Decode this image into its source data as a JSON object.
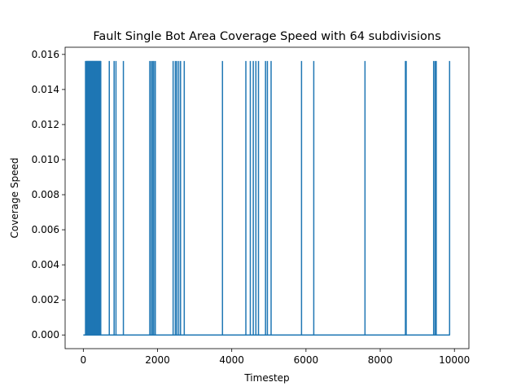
{
  "chart_data": {
    "type": "line",
    "title": "Fault Single Bot Area Coverage Speed with 64 subdivisions",
    "xlabel": "Timestep",
    "ylabel": "Coverage Speed",
    "xlim": [
      -490,
      10390
    ],
    "ylim": [
      -0.00078,
      0.01641
    ],
    "xticks": [
      0,
      2000,
      4000,
      6000,
      8000,
      10000
    ],
    "xtick_labels": [
      "0",
      "2000",
      "4000",
      "6000",
      "8000",
      "10000"
    ],
    "yticks": [
      0.0,
      0.002,
      0.004,
      0.006,
      0.008,
      0.01,
      0.012,
      0.014,
      0.016
    ],
    "ytick_labels": [
      "0.000",
      "0.002",
      "0.004",
      "0.006",
      "0.008",
      "0.010",
      "0.012",
      "0.014",
      "0.016"
    ],
    "grid": false,
    "legend": "none",
    "series": [
      {
        "color": "#1f77b4",
        "x_range": [
          0,
          9880
        ],
        "baseline": 0.0,
        "spike_value": 0.015625,
        "spike_timesteps": [
          60,
          75,
          90,
          100,
          110,
          120,
          130,
          140,
          150,
          160,
          170,
          180,
          190,
          200,
          210,
          220,
          230,
          240,
          250,
          260,
          270,
          280,
          290,
          300,
          310,
          320,
          330,
          340,
          350,
          360,
          370,
          380,
          390,
          400,
          410,
          420,
          430,
          440,
          450,
          460,
          470,
          700,
          830,
          880,
          1080,
          1790,
          1830,
          1870,
          1900,
          1940,
          2420,
          2480,
          2520,
          2570,
          2620,
          2720,
          3750,
          4380,
          4500,
          4580,
          4650,
          4720,
          4910,
          4960,
          5060,
          5880,
          6210,
          7590,
          8680,
          8700,
          9440,
          9480,
          9510,
          9870
        ]
      }
    ]
  }
}
